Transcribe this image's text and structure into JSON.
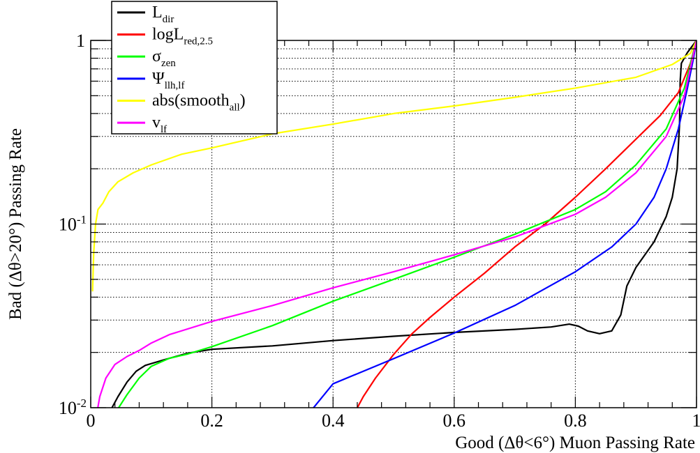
{
  "chart_data": {
    "type": "line",
    "xlabel": "Good (Δθ<6°) Muon Passing Rate",
    "ylabel": "Bad (Δθ>20°) Passing Rate",
    "xlim": [
      0,
      1
    ],
    "ylim": [
      0.01,
      1
    ],
    "yscale": "log",
    "grid": true,
    "legend_position": "top-left",
    "x_tick_labels": [
      "0",
      "0.2",
      "0.4",
      "0.6",
      "0.8",
      "1"
    ],
    "x_ticks": [
      0,
      0.2,
      0.4,
      0.6,
      0.8,
      1
    ],
    "y_ticks": [
      {
        "value": 0.01,
        "base": "10",
        "exp": "-2"
      },
      {
        "value": 0.1,
        "base": "10",
        "exp": "-1"
      },
      {
        "value": 1,
        "base": "1",
        "exp": ""
      }
    ],
    "series": [
      {
        "name": "L",
        "sub": "dir",
        "suffix": "",
        "color": "#000000",
        "points": [
          [
            0.03,
            0.0093
          ],
          [
            0.045,
            0.0115
          ],
          [
            0.06,
            0.0138
          ],
          [
            0.075,
            0.0158
          ],
          [
            0.09,
            0.017
          ],
          [
            0.12,
            0.0182
          ],
          [
            0.16,
            0.0198
          ],
          [
            0.2,
            0.0208
          ],
          [
            0.3,
            0.0217
          ],
          [
            0.4,
            0.0232
          ],
          [
            0.5,
            0.0245
          ],
          [
            0.6,
            0.0257
          ],
          [
            0.7,
            0.0267
          ],
          [
            0.76,
            0.0275
          ],
          [
            0.79,
            0.0285
          ],
          [
            0.805,
            0.0278
          ],
          [
            0.82,
            0.0262
          ],
          [
            0.84,
            0.0253
          ],
          [
            0.86,
            0.0262
          ],
          [
            0.875,
            0.032
          ],
          [
            0.885,
            0.046
          ],
          [
            0.9,
            0.058
          ],
          [
            0.93,
            0.08
          ],
          [
            0.95,
            0.11
          ],
          [
            0.96,
            0.14
          ],
          [
            0.968,
            0.2
          ],
          [
            0.972,
            0.35
          ],
          [
            0.973,
            0.6
          ],
          [
            0.975,
            0.75
          ],
          [
            0.985,
            0.86
          ],
          [
            1.0,
            1.0
          ]
        ]
      },
      {
        "name": "logL",
        "sub": "red,2.5",
        "suffix": "",
        "color": "#ff0000",
        "points": [
          [
            0.435,
            0.0093
          ],
          [
            0.45,
            0.0115
          ],
          [
            0.47,
            0.0145
          ],
          [
            0.5,
            0.0195
          ],
          [
            0.53,
            0.0252
          ],
          [
            0.56,
            0.031
          ],
          [
            0.6,
            0.04
          ],
          [
            0.65,
            0.054
          ],
          [
            0.7,
            0.075
          ],
          [
            0.75,
            0.1
          ],
          [
            0.8,
            0.14
          ],
          [
            0.85,
            0.2
          ],
          [
            0.9,
            0.29
          ],
          [
            0.94,
            0.39
          ],
          [
            0.97,
            0.52
          ],
          [
            0.99,
            0.75
          ],
          [
            1.0,
            1.0
          ]
        ]
      },
      {
        "name": "σ",
        "sub": "zen",
        "suffix": "",
        "color": "#00ff00",
        "points": [
          [
            0.04,
            0.0093
          ],
          [
            0.06,
            0.0118
          ],
          [
            0.08,
            0.0145
          ],
          [
            0.1,
            0.0168
          ],
          [
            0.13,
            0.0186
          ],
          [
            0.16,
            0.0196
          ],
          [
            0.2,
            0.0215
          ],
          [
            0.3,
            0.028
          ],
          [
            0.4,
            0.038
          ],
          [
            0.5,
            0.05
          ],
          [
            0.6,
            0.066
          ],
          [
            0.7,
            0.088
          ],
          [
            0.8,
            0.12
          ],
          [
            0.85,
            0.15
          ],
          [
            0.9,
            0.21
          ],
          [
            0.95,
            0.33
          ],
          [
            0.98,
            0.55
          ],
          [
            1.0,
            1.0
          ]
        ]
      },
      {
        "name": "Ψ",
        "sub": "llh,lf",
        "suffix": "",
        "color": "#0000ff",
        "points": [
          [
            0.36,
            0.0093
          ],
          [
            0.4,
            0.0135
          ],
          [
            0.5,
            0.0185
          ],
          [
            0.6,
            0.0255
          ],
          [
            0.7,
            0.036
          ],
          [
            0.8,
            0.055
          ],
          [
            0.86,
            0.075
          ],
          [
            0.9,
            0.1
          ],
          [
            0.93,
            0.14
          ],
          [
            0.95,
            0.2
          ],
          [
            0.97,
            0.33
          ],
          [
            0.985,
            0.55
          ],
          [
            0.995,
            0.8
          ],
          [
            1.0,
            1.0
          ]
        ]
      },
      {
        "name": "abs(smooth",
        "sub": "all",
        "suffix": ")",
        "color": "#ffff00",
        "points": [
          [
            0.003,
            0.043
          ],
          [
            0.005,
            0.07
          ],
          [
            0.008,
            0.1
          ],
          [
            0.012,
            0.12
          ],
          [
            0.02,
            0.13
          ],
          [
            0.03,
            0.15
          ],
          [
            0.045,
            0.17
          ],
          [
            0.07,
            0.19
          ],
          [
            0.1,
            0.21
          ],
          [
            0.15,
            0.24
          ],
          [
            0.2,
            0.26
          ],
          [
            0.3,
            0.31
          ],
          [
            0.4,
            0.35
          ],
          [
            0.5,
            0.4
          ],
          [
            0.6,
            0.44
          ],
          [
            0.7,
            0.49
          ],
          [
            0.8,
            0.55
          ],
          [
            0.9,
            0.63
          ],
          [
            0.96,
            0.74
          ],
          [
            0.99,
            0.85
          ],
          [
            1.0,
            1.0
          ]
        ]
      },
      {
        "name": "v",
        "sub": "lf",
        "suffix": "",
        "color": "#ff00ff",
        "points": [
          [
            0.01,
            0.0093
          ],
          [
            0.015,
            0.0115
          ],
          [
            0.025,
            0.0145
          ],
          [
            0.04,
            0.0172
          ],
          [
            0.06,
            0.019
          ],
          [
            0.08,
            0.0205
          ],
          [
            0.1,
            0.0225
          ],
          [
            0.13,
            0.025
          ],
          [
            0.2,
            0.0295
          ],
          [
            0.3,
            0.036
          ],
          [
            0.4,
            0.045
          ],
          [
            0.5,
            0.055
          ],
          [
            0.6,
            0.068
          ],
          [
            0.7,
            0.085
          ],
          [
            0.8,
            0.113
          ],
          [
            0.85,
            0.14
          ],
          [
            0.9,
            0.19
          ],
          [
            0.95,
            0.3
          ],
          [
            0.98,
            0.5
          ],
          [
            1.0,
            1.0
          ]
        ]
      }
    ]
  }
}
